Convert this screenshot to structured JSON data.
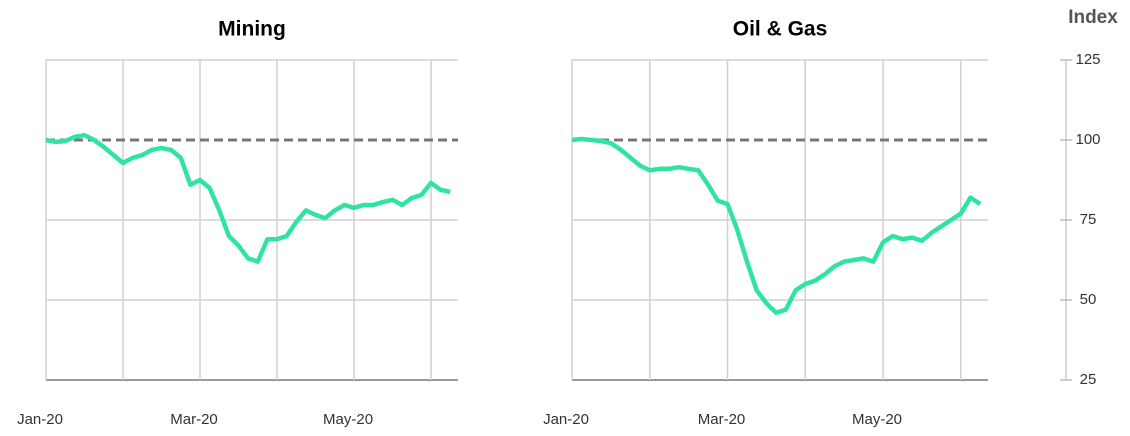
{
  "chart_data": [
    {
      "type": "line",
      "title": "Mining",
      "x": [
        0,
        0.125,
        0.25,
        0.375,
        0.5,
        0.625,
        0.75,
        0.875,
        1,
        1.125,
        1.25,
        1.375,
        1.5,
        1.625,
        1.75,
        1.875,
        2,
        2.125,
        2.25,
        2.375,
        2.5,
        2.625,
        2.75,
        2.875,
        3,
        3.125,
        3.25,
        3.375,
        3.5,
        3.625,
        3.75,
        3.875,
        4,
        4.125,
        4.25,
        4.375,
        4.5,
        4.625,
        4.75,
        4.875,
        5,
        5.125,
        5.25
      ],
      "series": [
        {
          "color": "#2fe3a0",
          "values": [
            100,
            99.4,
            99.7,
            101,
            101.5,
            100,
            97.8,
            95.3,
            92.8,
            94.4,
            95.3,
            96.9,
            97.5,
            96.9,
            94.4,
            86,
            87.5,
            85,
            78,
            70,
            67,
            63,
            62,
            69,
            69,
            70,
            74.4,
            78,
            76.6,
            75.6,
            78,
            79.7,
            78.8,
            79.7,
            79.7,
            80.6,
            81.3,
            79.7,
            81.9,
            82.8,
            86.6,
            84.4,
            83.8
          ]
        }
      ],
      "xlim": [
        0,
        5.35
      ],
      "xticks": [
        {
          "value": 0,
          "label": "Jan-20"
        },
        {
          "value": 1,
          "label": null
        },
        {
          "value": 2,
          "label": "Mar-20"
        },
        {
          "value": 3,
          "label": null
        },
        {
          "value": 4,
          "label": "May-20"
        },
        {
          "value": 5,
          "label": null
        }
      ],
      "ylim": [
        25,
        125
      ],
      "yticks": [
        25,
        50,
        75,
        100,
        125
      ],
      "reference_line": 100,
      "grid": true
    },
    {
      "type": "line",
      "title": "Oil & Gas",
      "ylabel": "Index",
      "x": [
        0,
        0.125,
        0.25,
        0.375,
        0.5,
        0.625,
        0.75,
        0.875,
        1,
        1.125,
        1.25,
        1.375,
        1.5,
        1.625,
        1.75,
        1.875,
        2,
        2.125,
        2.25,
        2.375,
        2.5,
        2.625,
        2.75,
        2.875,
        3,
        3.125,
        3.25,
        3.375,
        3.5,
        3.625,
        3.75,
        3.875,
        4,
        4.125,
        4.25,
        4.375,
        4.5,
        4.625,
        4.75,
        4.875,
        5,
        5.125,
        5.25
      ],
      "series": [
        {
          "color": "#2fe3a0",
          "values": [
            100,
            100.3,
            100,
            99.7,
            99,
            97,
            94.5,
            92,
            90.5,
            91,
            91,
            91.5,
            91,
            90.5,
            86,
            81,
            80,
            72,
            62,
            53,
            49,
            46,
            47,
            53,
            55,
            56,
            58,
            60.5,
            62,
            62.5,
            63,
            62,
            68,
            70,
            69,
            69.5,
            68.5,
            71,
            73,
            75,
            77,
            82,
            80
          ]
        }
      ],
      "xlim": [
        0,
        5.35
      ],
      "xticks": [
        {
          "value": 0,
          "label": "Jan-20"
        },
        {
          "value": 1,
          "label": null
        },
        {
          "value": 2,
          "label": "Mar-20"
        },
        {
          "value": 3,
          "label": null
        },
        {
          "value": 4,
          "label": "May-20"
        },
        {
          "value": 5,
          "label": null
        }
      ],
      "ylim": [
        25,
        125
      ],
      "yticks": [
        25,
        50,
        75,
        100,
        125
      ],
      "reference_line": 100,
      "grid": true
    }
  ]
}
